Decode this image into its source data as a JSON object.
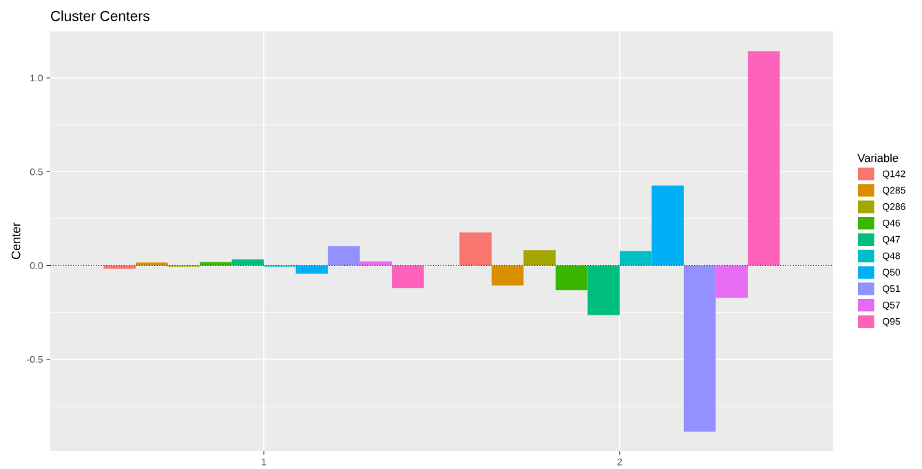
{
  "chart_data": {
    "type": "bar",
    "title": "Cluster Centers",
    "ylabel": "Center",
    "legend_title": "Variable",
    "categories": [
      "1",
      "2"
    ],
    "series": [
      {
        "name": "Q142",
        "color": "#f8766d",
        "values": [
          -0.018,
          0.176
        ]
      },
      {
        "name": "Q285",
        "color": "#d89000",
        "values": [
          0.015,
          -0.107
        ]
      },
      {
        "name": "Q286",
        "color": "#a3a500",
        "values": [
          -0.007,
          0.081
        ]
      },
      {
        "name": "Q46",
        "color": "#39b600",
        "values": [
          0.018,
          -0.132
        ]
      },
      {
        "name": "Q47",
        "color": "#00bf7d",
        "values": [
          0.033,
          -0.265
        ]
      },
      {
        "name": "Q48",
        "color": "#00bfc4",
        "values": [
          -0.007,
          0.077
        ]
      },
      {
        "name": "Q50",
        "color": "#00b0f6",
        "values": [
          -0.044,
          0.426
        ]
      },
      {
        "name": "Q51",
        "color": "#9590ff",
        "values": [
          0.103,
          -0.886
        ]
      },
      {
        "name": "Q57",
        "color": "#e76bf3",
        "values": [
          0.022,
          -0.173
        ]
      },
      {
        "name": "Q95",
        "color": "#ff62bc",
        "values": [
          -0.121,
          1.143
        ]
      }
    ],
    "ylim": [
      -0.99,
      1.25
    ],
    "yticks": [
      {
        "value": -0.5,
        "label": "-0.5"
      },
      {
        "value": 0.0,
        "label": "0.0"
      },
      {
        "value": 0.5,
        "label": "0.5"
      },
      {
        "value": 1.0,
        "label": "1.0"
      }
    ],
    "ref_lines": [
      {
        "axis": "y",
        "value": 0,
        "label": null,
        "color": "#333333",
        "line_style": "dotted"
      }
    ],
    "grid": true,
    "legend": "right"
  }
}
